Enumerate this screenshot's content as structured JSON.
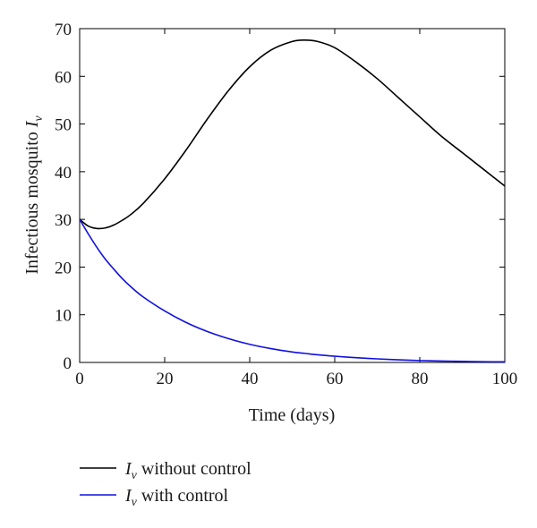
{
  "chart_data": {
    "type": "line",
    "xlabel": "Time (days)",
    "ylabel_text": "Infectious mosquito ",
    "ylabel_symbol": "I",
    "ylabel_subscript": "v",
    "xlim": [
      0,
      100
    ],
    "ylim": [
      0,
      70
    ],
    "xticks": [
      0,
      20,
      40,
      60,
      80,
      100
    ],
    "yticks": [
      0,
      10,
      20,
      30,
      40,
      50,
      60,
      70
    ],
    "grid": false,
    "legend_position": "bottom-left, below plot",
    "x": [
      0,
      2,
      4,
      6,
      8,
      10,
      12,
      15,
      20,
      25,
      30,
      35,
      40,
      45,
      50,
      53,
      56,
      60,
      65,
      70,
      75,
      80,
      85,
      90,
      95,
      100
    ],
    "series": [
      {
        "name": "without control",
        "legend_symbol": "I",
        "legend_subscript": "v",
        "legend_text": " without control",
        "color": "#000000",
        "values": [
          30,
          28.6,
          28.1,
          28.2,
          28.8,
          29.8,
          31.0,
          33.4,
          38.5,
          44.5,
          51.0,
          57.0,
          62.0,
          65.5,
          67.3,
          67.6,
          67.3,
          66.0,
          63.0,
          59.5,
          55.5,
          51.5,
          47.5,
          44.0,
          40.5,
          37.0
        ]
      },
      {
        "name": "with control",
        "legend_symbol": "I",
        "legend_subscript": "v",
        "legend_text": " with control",
        "color": "#1010e0",
        "values": [
          30,
          27.0,
          24.2,
          21.7,
          19.6,
          17.6,
          15.9,
          13.7,
          10.8,
          8.4,
          6.5,
          5.0,
          3.8,
          2.9,
          2.2,
          1.9,
          1.6,
          1.3,
          1.0,
          0.75,
          0.55,
          0.4,
          0.3,
          0.22,
          0.16,
          0.12
        ]
      }
    ]
  }
}
